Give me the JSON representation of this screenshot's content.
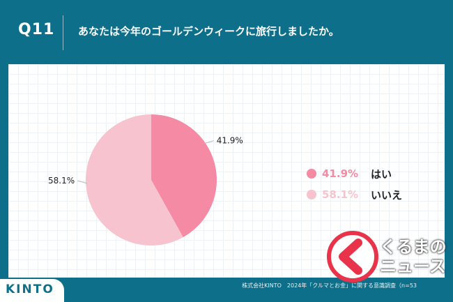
{
  "header": {
    "question_number": "Q11",
    "question_text": "あなたは今年のゴールデンウィークに旅行しましたか。"
  },
  "chart_data": {
    "type": "pie",
    "slices": [
      {
        "label": "はい",
        "value": 41.9,
        "display": "41.9%",
        "color": "#f48aa4"
      },
      {
        "label": "いいえ",
        "value": 58.1,
        "display": "58.1%",
        "color": "#f6c3ce"
      }
    ],
    "start_angle_deg": 0,
    "direction": "clockwise",
    "legend_position": "right"
  },
  "footer": {
    "source_note": "株式会社KINTO　2024年「クルマとお金」に関する意識調査（n=53",
    "brand": "KINTO"
  },
  "watermark": {
    "text_line1": "くるまの",
    "text_line2": "ニュース"
  }
}
